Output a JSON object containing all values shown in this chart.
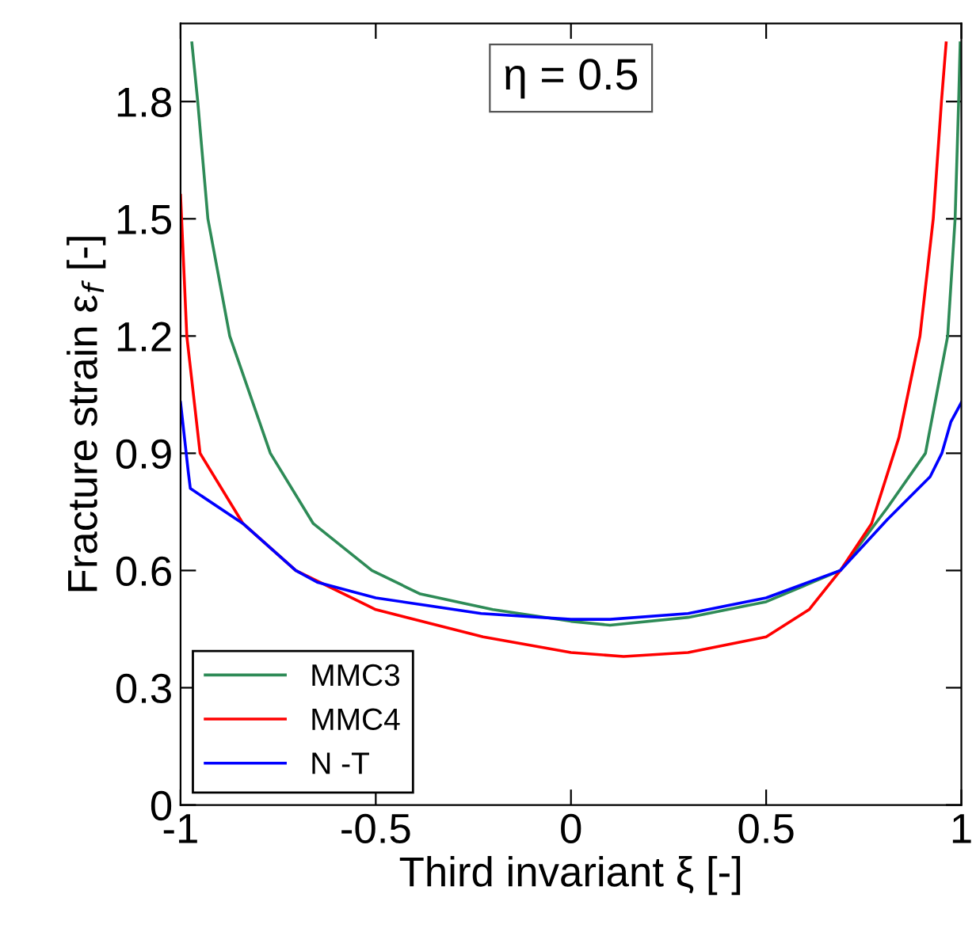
{
  "chart_data": {
    "type": "line",
    "xlabel": "Third invariant ξ [-]",
    "ylabel": "Fracture strain ε$_{f}$ [-]",
    "annotations": [
      "η = 0.5"
    ],
    "xlim": [
      -1,
      1
    ],
    "xticks": [
      -1,
      -0.5,
      0,
      0.5,
      1
    ],
    "ylim": [
      0,
      2.0
    ],
    "yticks": [
      0,
      0.3,
      0.6,
      0.9,
      1.2,
      1.5,
      1.8
    ],
    "grid": false,
    "legend": "bottom left",
    "marker": "none",
    "line_style": "solid",
    "series": [
      {
        "name": "MMC3",
        "color": "#2e8b57",
        "x": [
          -0.971,
          -0.956,
          -0.93,
          -0.874,
          -0.77,
          -0.66,
          -0.51,
          -0.386,
          -0.2,
          0,
          0.1,
          0.3,
          0.5,
          0.69,
          0.81,
          0.908,
          0.965,
          0.984,
          0.993,
          0.997
        ],
        "values": [
          1.95,
          1.8,
          1.5,
          1.2,
          0.9,
          0.72,
          0.6,
          0.54,
          0.5,
          0.47,
          0.46,
          0.48,
          0.52,
          0.6,
          0.76,
          0.9,
          1.2,
          1.5,
          1.8,
          1.95
        ]
      },
      {
        "name": "MMC4",
        "color": "#ff0000",
        "x": [
          -1,
          -0.984,
          -0.95,
          -0.84,
          -0.705,
          -0.5,
          -0.225,
          0,
          0.135,
          0.3,
          0.5,
          0.61,
          0.69,
          0.77,
          0.84,
          0.894,
          0.928,
          0.949,
          0.961
        ],
        "values": [
          1.56,
          1.2,
          0.9,
          0.72,
          0.6,
          0.5,
          0.43,
          0.39,
          0.38,
          0.39,
          0.43,
          0.5,
          0.6,
          0.72,
          0.94,
          1.2,
          1.5,
          1.8,
          1.95
        ]
      },
      {
        "name": "N -T",
        "color": "#0000ff",
        "x": [
          -1,
          -0.98,
          -0.975,
          -0.84,
          -0.705,
          -0.65,
          -0.5,
          -0.23,
          0,
          0.1,
          0.3,
          0.5,
          0.69,
          0.81,
          0.92,
          0.95,
          0.973,
          1.0
        ],
        "values": [
          1.03,
          0.85,
          0.81,
          0.72,
          0.6,
          0.57,
          0.53,
          0.49,
          0.475,
          0.475,
          0.49,
          0.53,
          0.6,
          0.73,
          0.84,
          0.9,
          0.98,
          1.03
        ]
      }
    ]
  }
}
